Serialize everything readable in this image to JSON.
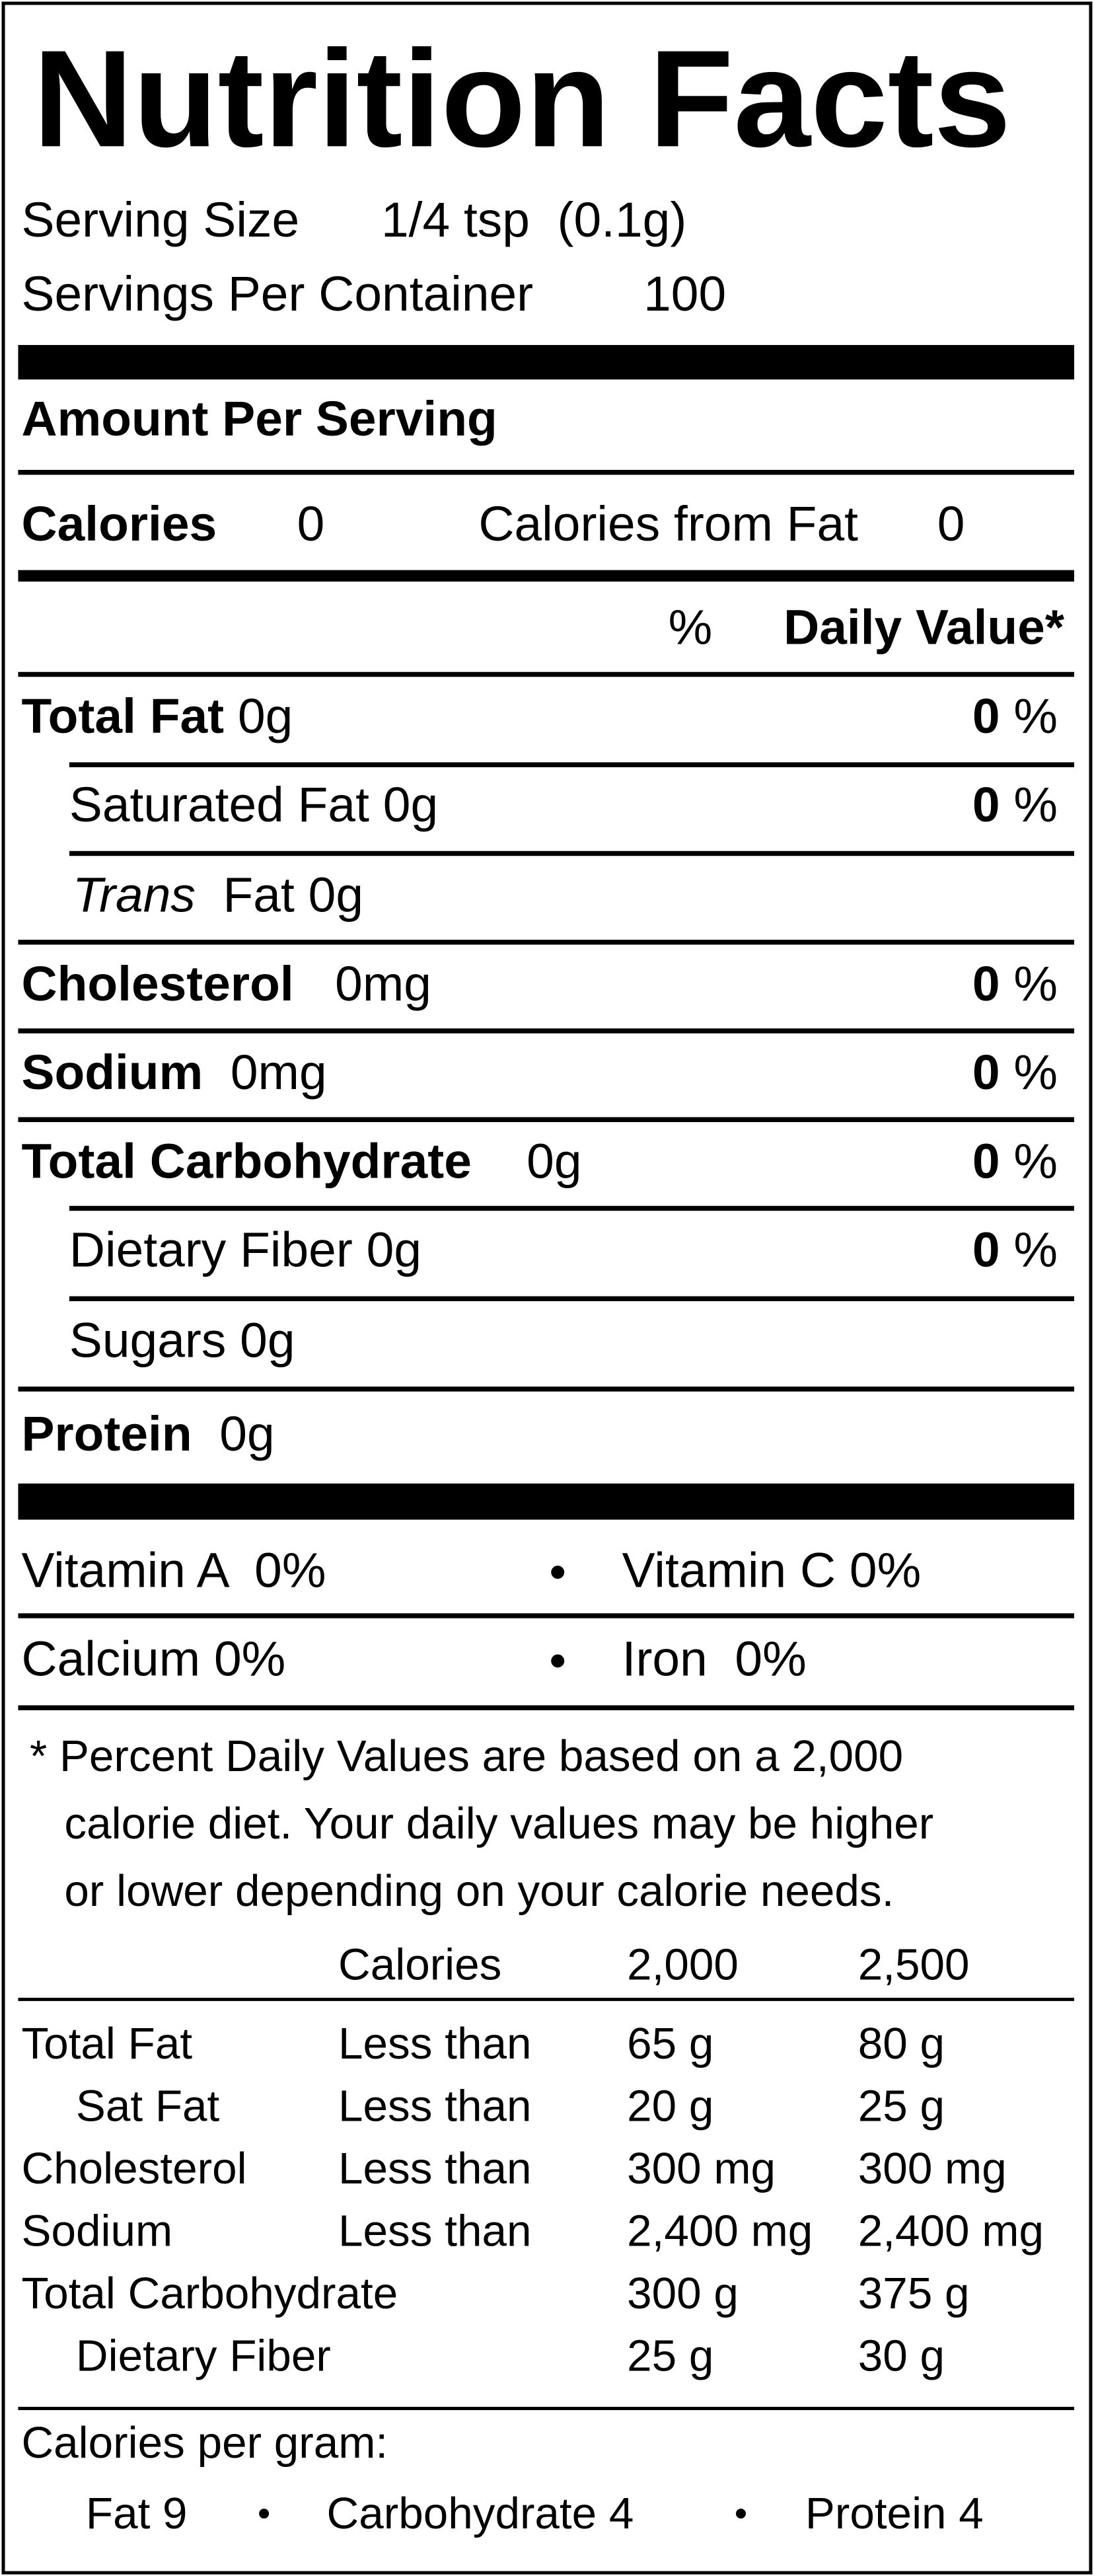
{
  "title": "Nutrition Facts",
  "serving_size": {
    "label": "Serving Size",
    "value": "1/4 tsp  (0.1g)"
  },
  "servings_per_container": {
    "label": "Servings Per Container",
    "value": "100"
  },
  "amount_per_serving": "Amount Per Serving",
  "calories": {
    "label": "Calories",
    "value": "0"
  },
  "calories_from_fat": {
    "label": "Calories from Fat",
    "value": "0"
  },
  "daily_value_header": {
    "symbol": "%",
    "label": "Daily Value*"
  },
  "nutrients": [
    {
      "name": "Total Fat",
      "amount": "0g",
      "dv": "0",
      "dv_unit": "%"
    },
    {
      "name": "Saturated Fat",
      "amount": "0g",
      "dv": "0",
      "dv_unit": "%"
    },
    {
      "name_italic": "Trans",
      "name": "Fat",
      "amount": "0g"
    },
    {
      "name": "Cholesterol",
      "amount": "0mg",
      "dv": "0",
      "dv_unit": "%"
    },
    {
      "name": "Sodium",
      "amount": "0mg",
      "dv": "0",
      "dv_unit": "%"
    },
    {
      "name": "Total Carbohydrate",
      "amount": "0g",
      "dv": "0",
      "dv_unit": "%"
    },
    {
      "name": "Dietary Fiber",
      "amount": "0g",
      "dv": "0",
      "dv_unit": "%"
    },
    {
      "name": "Sugars",
      "amount": "0g"
    },
    {
      "name": "Protein",
      "amount": "0g"
    }
  ],
  "vitamins": [
    {
      "name": "Vitamin A",
      "value": "0%"
    },
    {
      "name": "Vitamin C",
      "value": "0%"
    },
    {
      "name": "Calcium",
      "value": "0%"
    },
    {
      "name": "Iron",
      "value": "0%"
    }
  ],
  "footnote": [
    "* Percent Daily Values are based on a 2,000",
    "calorie diet. Your daily values may be higher",
    "or lower depending on your calorie needs."
  ],
  "reference_table": {
    "header": [
      "Calories",
      "2,000",
      "2,500"
    ],
    "rows": [
      [
        "Total Fat",
        "Less than",
        "65 g",
        "80 g"
      ],
      [
        "Sat Fat",
        "Less than",
        "20 g",
        "25 g"
      ],
      [
        "Cholesterol",
        "Less than",
        "300 mg",
        "300 mg"
      ],
      [
        "Sodium",
        "Less than",
        "2,400 mg",
        "2,400 mg"
      ],
      [
        "Total Carbohydrate",
        "300 g",
        "375 g"
      ],
      [
        "Dietary Fiber",
        "25 g",
        "30 g"
      ]
    ]
  },
  "calories_per_gram": {
    "label": "Calories per gram:",
    "items": [
      "Fat 9",
      "Carbohydrate 4",
      "Protein 4"
    ]
  }
}
